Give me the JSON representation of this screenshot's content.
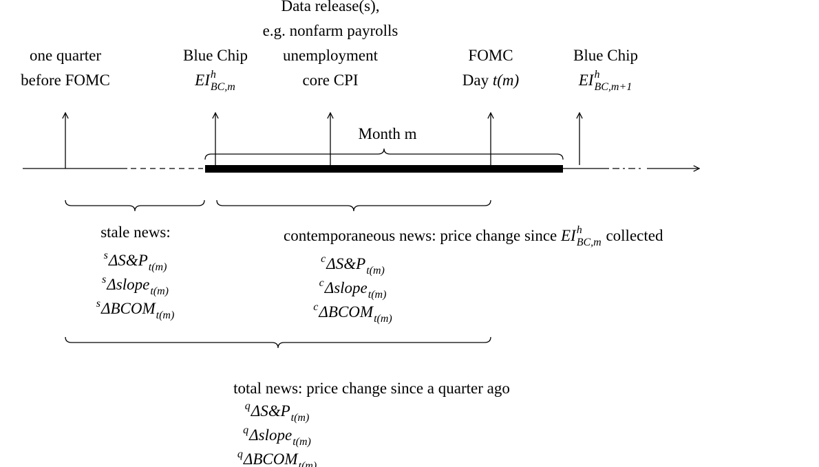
{
  "top_labels": [
    {
      "lines": [
        "one quarter",
        "before FOMC"
      ]
    },
    {
      "lines": [
        "Blue Chip"
      ],
      "term": {
        "base": "EI",
        "sup": "h",
        "sub": "BC,m"
      }
    },
    {
      "lines": [
        "Data release(s),",
        "e.g. nonfarm payrolls",
        "unemployment",
        "core CPI"
      ]
    },
    {
      "lines": [
        "FOMC"
      ],
      "day": {
        "text": "Day ",
        "term": "t(m)"
      }
    },
    {
      "lines": [
        "Blue Chip"
      ],
      "term": {
        "base": "EI",
        "sup": "h",
        "sub": "BC,m+1"
      }
    }
  ],
  "month_label": "Month m",
  "stale": {
    "title": "stale news:",
    "items": [
      {
        "pre": "s",
        "base": "ΔS&P",
        "sub": "t(m)"
      },
      {
        "pre": "s",
        "base": "Δslope",
        "sub": "t(m)"
      },
      {
        "pre": "s",
        "base": "ΔBCOM",
        "sub": "t(m)"
      }
    ]
  },
  "contemporaneous": {
    "prefix": "contemporaneous news: price change since ",
    "term": {
      "base": "EI",
      "sup": "h",
      "sub": "BC,m"
    },
    "suffix": " collected",
    "items": [
      {
        "pre": "c",
        "base": "ΔS&P",
        "sub": "t(m)"
      },
      {
        "pre": "c",
        "base": "Δslope",
        "sub": "t(m)"
      },
      {
        "pre": "c",
        "base": "ΔBCOM",
        "sub": "t(m)"
      }
    ]
  },
  "total": {
    "title": "total news: price change since a quarter ago",
    "items": [
      {
        "pre": "q",
        "base": "ΔS&P",
        "sub": "t(m)"
      },
      {
        "pre": "q",
        "base": "Δslope",
        "sub": "t(m)"
      },
      {
        "pre": "q",
        "base": "ΔBCOM",
        "sub": "t(m)"
      }
    ]
  }
}
